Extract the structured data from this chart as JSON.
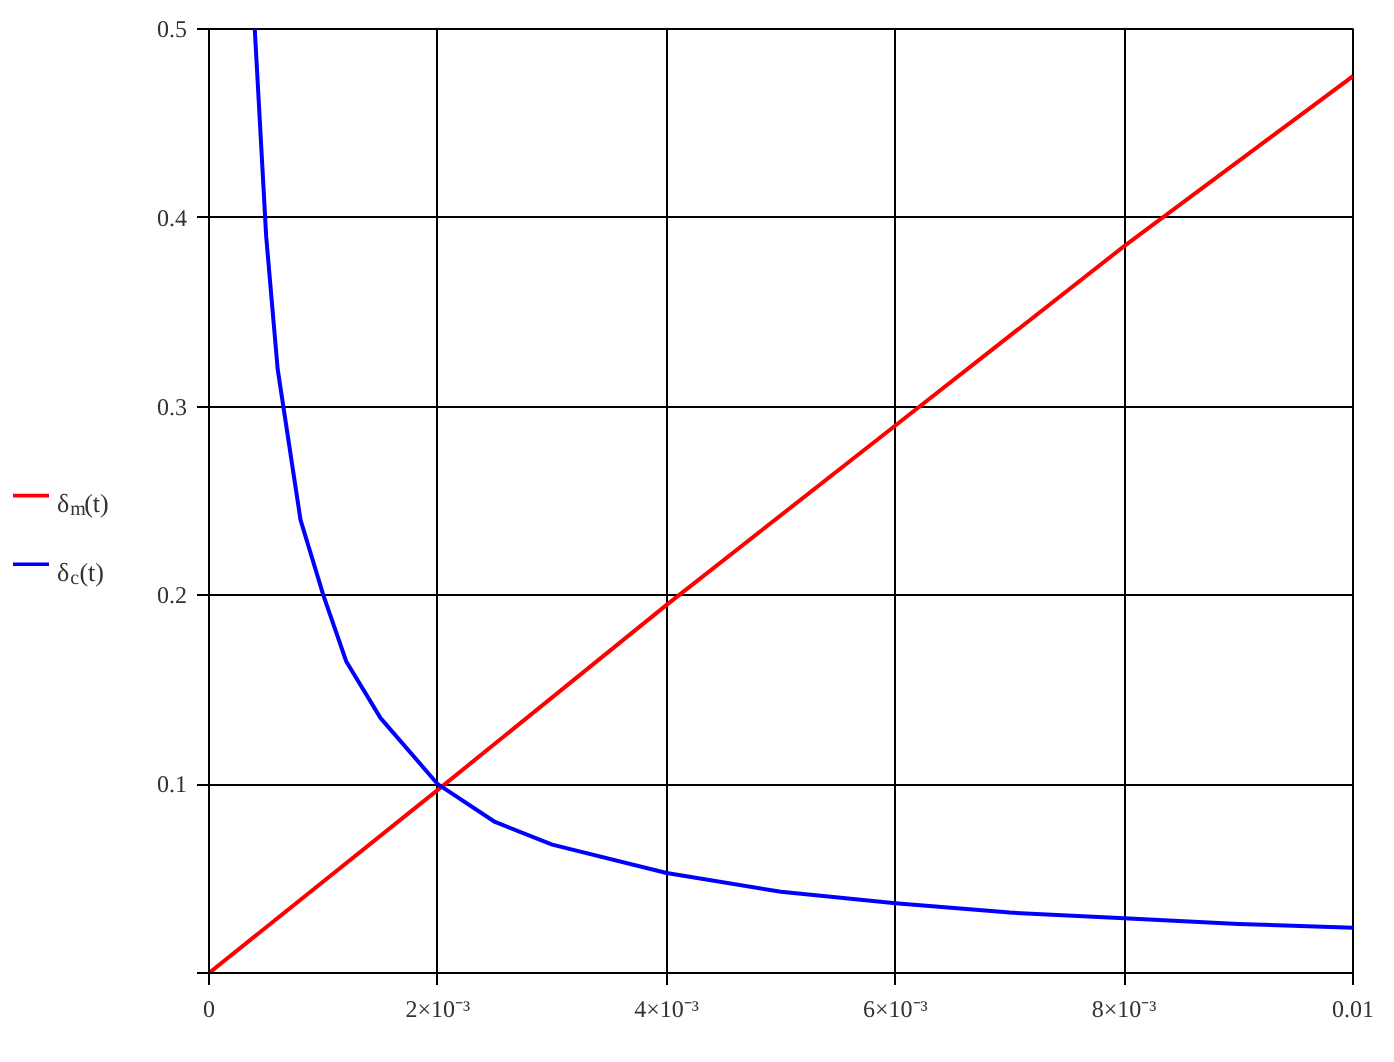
{
  "chart_data": {
    "type": "line",
    "xlim": [
      0,
      0.01
    ],
    "ylim": [
      0,
      0.5
    ],
    "xticks": [
      0,
      {
        "value": 0.002,
        "label": "2×10⁻³"
      },
      {
        "value": 0.004,
        "label": "4×10⁻³"
      },
      {
        "value": 0.006,
        "label": "6×10⁻³"
      },
      {
        "value": 0.008,
        "label": "8×10⁻³"
      },
      0.01
    ],
    "yticks": [
      {
        "value": 0,
        "label": null
      },
      0.1,
      0.2,
      0.3,
      0.4,
      0.5
    ],
    "grid": true,
    "legend": "left",
    "line_style": "solid",
    "marker": "none",
    "series": [
      {
        "name": "δ$_{m}$(t)",
        "color": "#ff0000",
        "x": [
          0,
          0.002,
          0.004,
          0.006,
          0.008,
          0.01
        ],
        "values": [
          0,
          0.097,
          0.195,
          0.29,
          0.385,
          0.475
        ]
      },
      {
        "name": "δ$_{c}$(t)",
        "color": "#0000ff",
        "x": [
          0.0004,
          0.0005,
          0.0006,
          0.0007,
          0.0008,
          0.001,
          0.0012,
          0.0015,
          0.002,
          0.0025,
          0.003,
          0.004,
          0.005,
          0.006,
          0.007,
          0.008,
          0.009,
          0.01
        ],
        "values": [
          0.5,
          0.39,
          0.32,
          0.28,
          0.24,
          0.2,
          0.165,
          0.135,
          0.1,
          0.08,
          0.068,
          0.053,
          0.043,
          0.037,
          0.032,
          0.029,
          0.026,
          0.024
        ]
      }
    ]
  }
}
